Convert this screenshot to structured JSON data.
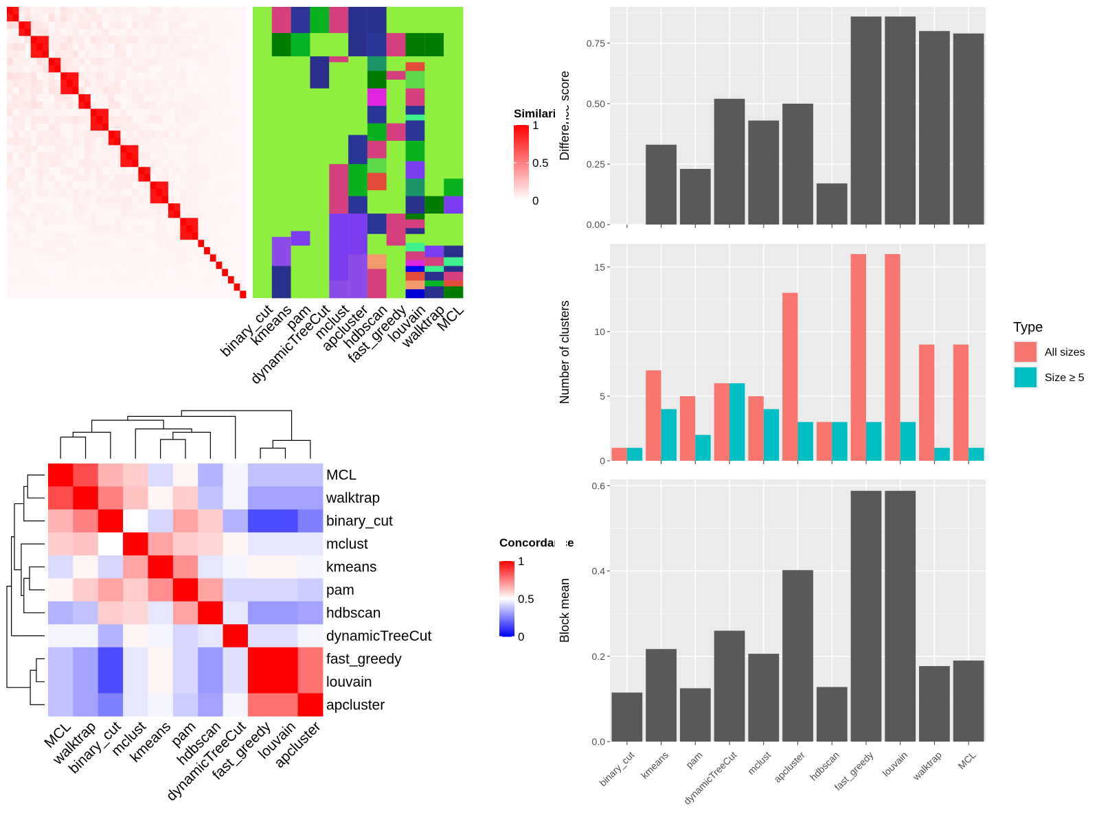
{
  "similarity_legend": {
    "title": "Similarity",
    "ticks": [
      "1",
      "0.5",
      "0"
    ]
  },
  "concordance_legend": {
    "title": "Concordance",
    "ticks": [
      "1",
      "0.5",
      "0"
    ]
  },
  "colors": {
    "panel_bg": "#ebebeb",
    "bar_gray": "#595959",
    "all_sizes": "#f8766d",
    "size_ge5": "#00bfc4",
    "heat_high": "#ff0000",
    "heat_mid": "#ffffff",
    "heat_low": "#0000ff"
  },
  "chart_data": [
    {
      "type": "heatmap",
      "name": "similarity-heatmap",
      "legend_title": "Similarity",
      "range": [
        0,
        1
      ],
      "grid_size": 40,
      "column_labels": [
        "binary_cut",
        "kmeans",
        "pam",
        "dynamicTreeCut",
        "mclust",
        "apcluster",
        "hdbscan",
        "fast_greedy",
        "louvain",
        "walktrap",
        "MCL"
      ]
    },
    {
      "type": "heatmap",
      "name": "concordance-heatmap",
      "legend_title": "Concordance",
      "range": [
        0,
        1
      ],
      "row_labels": [
        "MCL",
        "walktrap",
        "binary_cut",
        "mclust",
        "kmeans",
        "pam",
        "hdbscan",
        "dynamicTreeCut",
        "fast_greedy",
        "louvain",
        "apcluster"
      ],
      "column_labels": [
        "MCL",
        "walktrap",
        "binary_cut",
        "mclust",
        "kmeans",
        "pam",
        "hdbscan",
        "dynamicTreeCut",
        "fast_greedy",
        "louvain",
        "apcluster"
      ],
      "values": [
        [
          1.0,
          0.85,
          0.65,
          0.6,
          0.43,
          0.52,
          0.35,
          0.48,
          0.38,
          0.38,
          0.38
        ],
        [
          0.85,
          1.0,
          0.75,
          0.62,
          0.52,
          0.6,
          0.38,
          0.48,
          0.32,
          0.32,
          0.32
        ],
        [
          0.65,
          0.75,
          1.0,
          0.5,
          0.42,
          0.68,
          0.6,
          0.35,
          0.15,
          0.15,
          0.25
        ],
        [
          0.6,
          0.62,
          0.5,
          1.0,
          0.68,
          0.6,
          0.58,
          0.52,
          0.45,
          0.45,
          0.45
        ],
        [
          0.43,
          0.52,
          0.42,
          0.68,
          1.0,
          0.72,
          0.45,
          0.48,
          0.52,
          0.52,
          0.48
        ],
        [
          0.52,
          0.6,
          0.68,
          0.6,
          0.72,
          1.0,
          0.68,
          0.42,
          0.42,
          0.42,
          0.4
        ],
        [
          0.35,
          0.38,
          0.6,
          0.58,
          0.45,
          0.68,
          1.0,
          0.45,
          0.3,
          0.3,
          0.32
        ],
        [
          0.48,
          0.48,
          0.35,
          0.52,
          0.48,
          0.42,
          0.45,
          1.0,
          0.44,
          0.44,
          0.48
        ],
        [
          0.38,
          0.32,
          0.15,
          0.45,
          0.52,
          0.42,
          0.3,
          0.44,
          1.0,
          1.0,
          0.78
        ],
        [
          0.38,
          0.32,
          0.15,
          0.45,
          0.52,
          0.42,
          0.3,
          0.44,
          1.0,
          1.0,
          0.78
        ],
        [
          0.38,
          0.32,
          0.25,
          0.45,
          0.48,
          0.4,
          0.32,
          0.48,
          0.78,
          0.78,
          1.0
        ]
      ]
    },
    {
      "type": "bar",
      "name": "difference-score",
      "categories": [
        "binary_cut",
        "kmeans",
        "pam",
        "dynamicTreeCut",
        "mclust",
        "apcluster",
        "hdbscan",
        "fast_greedy",
        "louvain",
        "walktrap",
        "MCL"
      ],
      "values": [
        0,
        0.33,
        0.23,
        0.52,
        0.43,
        0.5,
        0.17,
        0.86,
        0.86,
        0.8,
        0.79
      ],
      "ylabel": "Difference score",
      "ylim": [
        0,
        0.9
      ],
      "yticks": [
        "0.00",
        "0.25",
        "0.50",
        "0.75"
      ]
    },
    {
      "type": "bar",
      "name": "number-of-clusters",
      "categories": [
        "binary_cut",
        "kmeans",
        "pam",
        "dynamicTreeCut",
        "mclust",
        "apcluster",
        "hdbscan",
        "fast_greedy",
        "louvain",
        "walktrap",
        "MCL"
      ],
      "series": [
        {
          "name": "All sizes",
          "values": [
            1,
            7,
            5,
            6,
            5,
            13,
            3,
            16,
            16,
            9,
            9
          ]
        },
        {
          "name": "Size ≥ 5",
          "values": [
            1,
            4,
            2,
            6,
            4,
            3,
            3,
            3,
            3,
            1,
            1
          ]
        }
      ],
      "ylabel": "Number of clusters",
      "ylim": [
        0,
        16.8
      ],
      "yticks": [
        "0",
        "5",
        "10",
        "15"
      ],
      "legend_title": "Type",
      "legend_position": "right"
    },
    {
      "type": "bar",
      "name": "block-mean",
      "categories": [
        "binary_cut",
        "kmeans",
        "pam",
        "dynamicTreeCut",
        "mclust",
        "apcluster",
        "hdbscan",
        "fast_greedy",
        "louvain",
        "walktrap",
        "MCL"
      ],
      "values": [
        0.115,
        0.217,
        0.125,
        0.26,
        0.206,
        0.402,
        0.128,
        0.588,
        0.588,
        0.177,
        0.19
      ],
      "ylabel": "Block mean",
      "ylim": [
        0,
        0.615
      ],
      "yticks": [
        "0.0",
        "0.2",
        "0.4",
        "0.6"
      ]
    }
  ]
}
